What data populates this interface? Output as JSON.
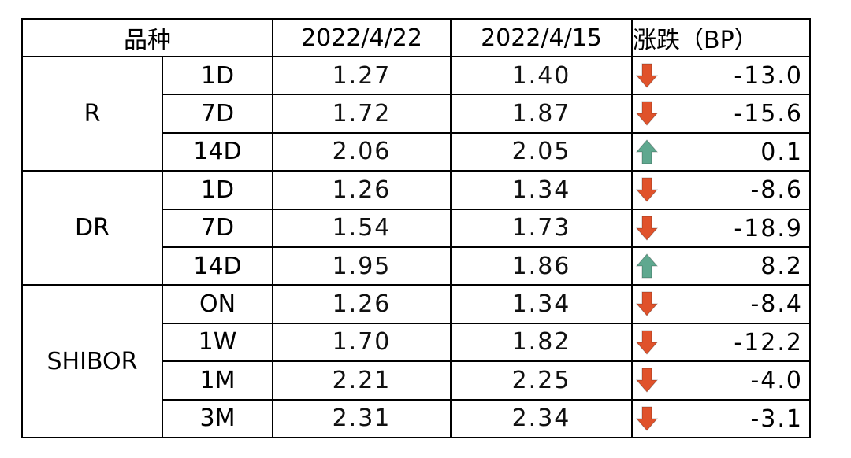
{
  "header": {
    "variety": "品种",
    "date1": "2022/4/22",
    "date2": "2022/4/15",
    "change": "涨跌（BP）"
  },
  "groups": [
    {
      "name": "R",
      "rows": [
        {
          "tenor": "1D",
          "v1": "1.27",
          "v2": "1.40",
          "direction": "down",
          "change": "-13.0"
        },
        {
          "tenor": "7D",
          "v1": "1.72",
          "v2": "1.87",
          "direction": "down",
          "change": "-15.6"
        },
        {
          "tenor": "14D",
          "v1": "2.06",
          "v2": "2.05",
          "direction": "up",
          "change": "0.1"
        }
      ]
    },
    {
      "name": "DR",
      "rows": [
        {
          "tenor": "1D",
          "v1": "1.26",
          "v2": "1.34",
          "direction": "down",
          "change": "-8.6"
        },
        {
          "tenor": "7D",
          "v1": "1.54",
          "v2": "1.73",
          "direction": "down",
          "change": "-18.9"
        },
        {
          "tenor": "14D",
          "v1": "1.95",
          "v2": "1.86",
          "direction": "up",
          "change": "8.2"
        }
      ]
    },
    {
      "name": "SHIBOR",
      "rows": [
        {
          "tenor": "ON",
          "v1": "1.26",
          "v2": "1.34",
          "direction": "down",
          "change": "-8.4"
        },
        {
          "tenor": "1W",
          "v1": "1.70",
          "v2": "1.82",
          "direction": "down",
          "change": "-12.2"
        },
        {
          "tenor": "1M",
          "v1": "2.21",
          "v2": "2.25",
          "direction": "down",
          "change": "-4.0"
        },
        {
          "tenor": "3M",
          "v1": "2.31",
          "v2": "2.34",
          "direction": "down",
          "change": "-3.1"
        }
      ]
    }
  ],
  "colors": {
    "down_arrow": "#e0522b",
    "up_arrow": "#5fa88f",
    "border": "#000000"
  }
}
